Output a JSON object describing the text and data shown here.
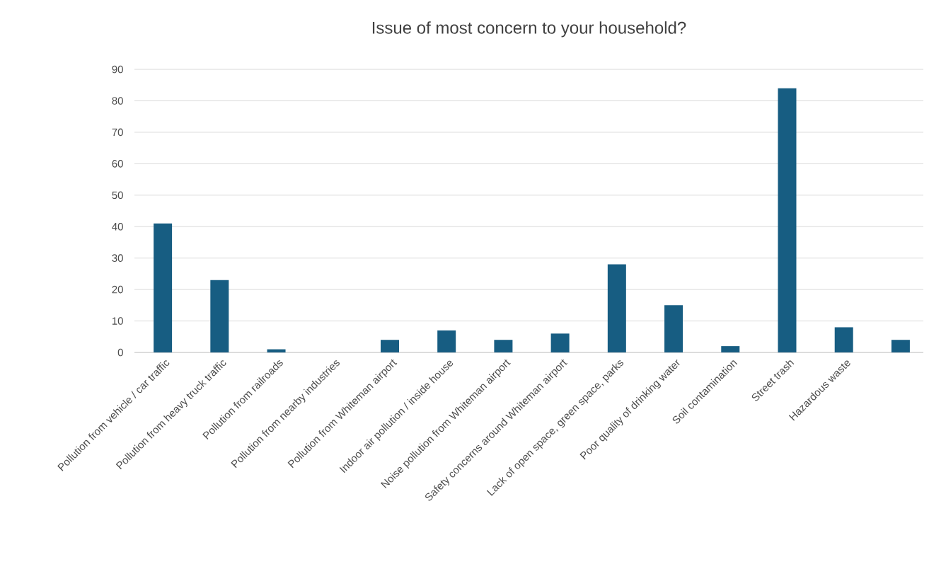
{
  "chart_data": {
    "type": "bar",
    "title": "Issue of most concern to your household?",
    "categories": [
      "Pollution from vehicle / car traffic",
      "Pollution from heavy truck traffic",
      "Pollution from railroads",
      "Pollution from nearby industries",
      "Pollution from Whiteman airport",
      "Indoor air pollution / inside house",
      "Noise pollution from Whiteman airport",
      "Safety concerns around Whiteman airport",
      "Lack of open space, green space, parks",
      "Poor quality of drinking water",
      "Soil contamination",
      "Street trash",
      "Hazardous waste",
      null
    ],
    "values": [
      41,
      23,
      1,
      0,
      4,
      7,
      4,
      6,
      28,
      15,
      2,
      84,
      8,
      4
    ],
    "color": "#175d82",
    "ylim": [
      0,
      90
    ],
    "yticks": [
      0,
      10,
      20,
      30,
      40,
      50,
      60,
      70,
      80,
      90
    ],
    "grid": "y"
  }
}
